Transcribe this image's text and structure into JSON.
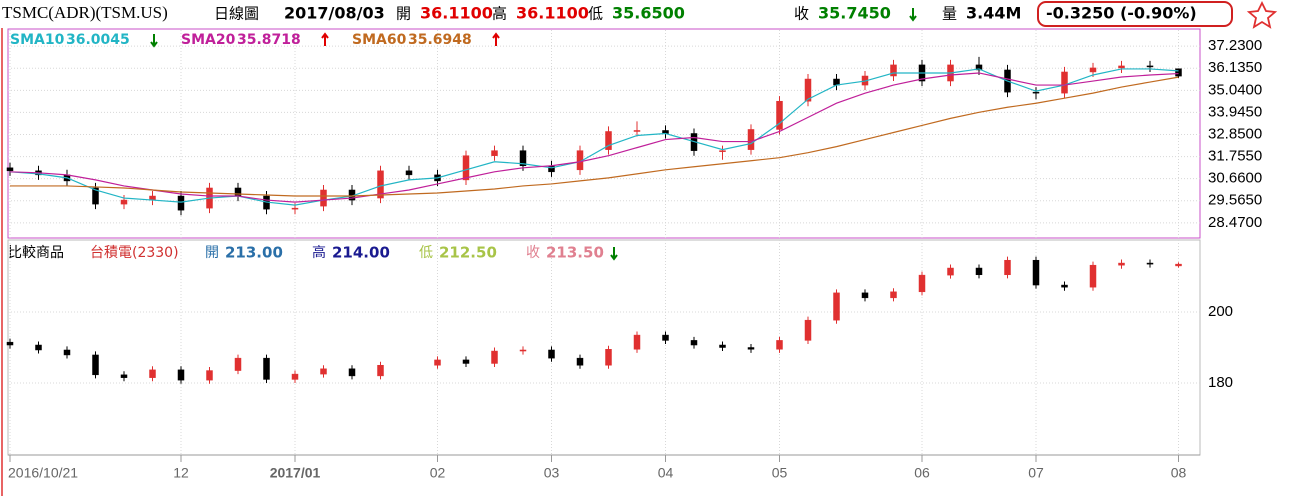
{
  "header": {
    "symbol": "TSMC(ADR)(TSM.US)",
    "period": "日線圖",
    "date": "2017/08/03",
    "quote": [
      {
        "name": "開",
        "value": 36.11,
        "label": "36.1100",
        "color": "#e00000"
      },
      {
        "name": "高",
        "value": 36.11,
        "label": "36.1100",
        "color": "#e00000"
      },
      {
        "name": "低",
        "value": 35.65,
        "label": "35.6500",
        "color": "#008000"
      },
      {
        "name": "收",
        "value": 35.745,
        "label": "35.7450",
        "color": "#008000"
      },
      {
        "name": "量",
        "value": 3440000,
        "label": "3.44M",
        "color": "#000000"
      }
    ],
    "change": "-0.3250 (-0.90%)"
  },
  "chart_data": [
    {
      "type": "candlestick",
      "up_color": "#e03030",
      "down_color": "#000000",
      "open": [
        31.2,
        31.05,
        30.85,
        30.2,
        29.4,
        29.6,
        29.8,
        29.2,
        30.2,
        29.8,
        29.15,
        29.3,
        30.1,
        29.7,
        31.05,
        30.85,
        30.6,
        31.8,
        32.05,
        31.3,
        31.1,
        32.1,
        33.0,
        33.05,
        32.9,
        32.05,
        32.1,
        33.1,
        34.5,
        35.6,
        35.3,
        35.75,
        36.3,
        35.5,
        36.3,
        36.05,
        34.95,
        34.9,
        35.95,
        36.15,
        36.25,
        36.11
      ],
      "high": [
        31.45,
        31.3,
        31.1,
        30.45,
        29.85,
        30.05,
        30.05,
        30.45,
        30.45,
        30.05,
        29.45,
        30.35,
        30.35,
        31.3,
        31.3,
        31.1,
        32.05,
        32.3,
        32.3,
        31.55,
        32.3,
        33.25,
        33.5,
        33.3,
        33.15,
        32.3,
        33.35,
        34.75,
        35.85,
        35.85,
        36.0,
        36.55,
        36.55,
        36.55,
        36.7,
        36.3,
        35.2,
        36.2,
        36.4,
        36.5,
        36.5,
        36.11
      ],
      "low": [
        30.8,
        30.6,
        30.3,
        29.15,
        29.15,
        29.35,
        28.85,
        28.95,
        29.55,
        28.9,
        28.9,
        29.05,
        29.35,
        29.45,
        30.6,
        30.3,
        30.35,
        31.55,
        31.05,
        30.75,
        30.85,
        31.85,
        32.75,
        32.65,
        31.8,
        31.6,
        31.85,
        32.85,
        34.25,
        35.05,
        35.05,
        35.5,
        35.25,
        35.25,
        35.8,
        34.7,
        34.6,
        34.65,
        35.7,
        35.9,
        35.95,
        35.65
      ],
      "close": [
        31.05,
        30.85,
        30.55,
        29.4,
        29.6,
        29.8,
        29.1,
        30.2,
        29.8,
        29.15,
        29.2,
        30.1,
        29.6,
        31.05,
        30.85,
        30.55,
        31.8,
        32.05,
        31.3,
        31.0,
        32.05,
        33.0,
        33.05,
        32.9,
        32.05,
        32.05,
        33.1,
        34.5,
        35.6,
        35.3,
        35.75,
        36.3,
        35.5,
        36.3,
        36.05,
        34.95,
        34.9,
        35.95,
        36.15,
        36.25,
        36.2,
        35.745
      ],
      "series": [
        {
          "name": "SMA10",
          "color": "#22b5c5",
          "last_label": "36.0045",
          "values": [
            31.0,
            30.9,
            30.7,
            30.1,
            29.7,
            29.6,
            29.5,
            29.7,
            29.8,
            29.5,
            29.35,
            29.6,
            29.8,
            30.3,
            30.6,
            30.7,
            31.1,
            31.5,
            31.4,
            31.2,
            31.5,
            32.3,
            32.8,
            32.9,
            32.5,
            32.1,
            32.4,
            33.4,
            34.6,
            35.3,
            35.5,
            35.9,
            35.9,
            35.9,
            36.1,
            35.5,
            35.0,
            35.3,
            35.8,
            36.1,
            36.1,
            36.0045
          ]
        },
        {
          "name": "SMA20",
          "color": "#c0209a",
          "last_label": "35.8718",
          "values": [
            31.0,
            30.95,
            30.85,
            30.6,
            30.3,
            30.1,
            29.9,
            29.8,
            29.8,
            29.6,
            29.5,
            29.6,
            29.7,
            29.9,
            30.1,
            30.4,
            30.7,
            31.0,
            31.2,
            31.3,
            31.5,
            31.8,
            32.2,
            32.6,
            32.7,
            32.5,
            32.5,
            33.0,
            33.7,
            34.4,
            34.9,
            35.3,
            35.6,
            35.8,
            35.9,
            35.6,
            35.3,
            35.3,
            35.5,
            35.7,
            35.8,
            35.8718
          ]
        },
        {
          "name": "SMA60",
          "color": "#c06a20",
          "last_label": "35.6948",
          "values": [
            30.3,
            30.3,
            30.3,
            30.25,
            30.2,
            30.1,
            30.0,
            29.95,
            29.9,
            29.85,
            29.8,
            29.8,
            29.8,
            29.85,
            29.9,
            29.95,
            30.05,
            30.15,
            30.3,
            30.4,
            30.55,
            30.7,
            30.9,
            31.1,
            31.25,
            31.4,
            31.55,
            31.7,
            31.95,
            32.25,
            32.6,
            32.95,
            33.3,
            33.65,
            33.95,
            34.2,
            34.4,
            34.65,
            34.9,
            35.2,
            35.45,
            35.6948
          ]
        }
      ],
      "ylim": [
        27.72,
        38.03
      ],
      "yticks": [
        {
          "value": 37.23,
          "label": "37.2300"
        },
        {
          "value": 36.135,
          "label": "36.1350"
        },
        {
          "value": 35.04,
          "label": "35.0400"
        },
        {
          "value": 33.945,
          "label": "33.9450"
        },
        {
          "value": 32.85,
          "label": "32.8500"
        },
        {
          "value": 31.755,
          "label": "31.7550"
        },
        {
          "value": 30.66,
          "label": "30.6600"
        },
        {
          "value": 29.565,
          "label": "29.5650"
        },
        {
          "value": 28.47,
          "label": "28.4700"
        }
      ],
      "grid": true
    },
    {
      "type": "candlestick",
      "title": "比較商品",
      "product": "台積電(2330)",
      "up_color": "#e03030",
      "down_color": "#000000",
      "quote": [
        {
          "name": "開",
          "value": 213.0,
          "label": "213.00",
          "color": "#2a6fa8"
        },
        {
          "name": "高",
          "value": 214.0,
          "label": "214.00",
          "color": "#1a1a90"
        },
        {
          "name": "低",
          "value": 212.5,
          "label": "212.50",
          "color": "#a8c448"
        },
        {
          "name": "收",
          "value": 213.5,
          "label": "213.50",
          "color": "#e08090"
        }
      ],
      "categories": [
        "2016/10/21",
        null,
        null,
        null,
        null,
        null,
        "12",
        null,
        null,
        null,
        "2017/01",
        null,
        null,
        null,
        null,
        "02",
        null,
        null,
        null,
        "03",
        null,
        null,
        null,
        "04",
        null,
        null,
        null,
        "05",
        null,
        null,
        null,
        null,
        "06",
        null,
        null,
        null,
        "07",
        null,
        null,
        null,
        null,
        "08"
      ],
      "open": [
        191.5,
        190.7,
        189.3,
        187.9,
        182.3,
        181.5,
        183.7,
        180.8,
        183.5,
        187,
        181,
        182.5,
        184,
        182,
        null,
        185,
        186.5,
        185.5,
        189,
        189.3,
        187,
        185,
        189.5,
        193.5,
        192,
        190.7,
        190,
        189.5,
        192,
        197.7,
        205.4,
        204,
        205.7,
        210.4,
        212.4,
        210.5,
        214.6,
        207.6,
        207,
        213.2,
        213.8,
        213.0
      ],
      "high": [
        192.5,
        191.7,
        190.3,
        188.9,
        183.3,
        184.7,
        184.7,
        184.5,
        188.0,
        188,
        183.5,
        185,
        185,
        186,
        null,
        187.5,
        187.5,
        190,
        190.3,
        190.3,
        188,
        190.5,
        194.5,
        194.5,
        193,
        191.7,
        191,
        193,
        198.7,
        206.4,
        206.4,
        206.7,
        211.4,
        213.4,
        213.4,
        215.6,
        215.6,
        208.6,
        214.2,
        214.8,
        214.8,
        214.0
      ],
      "low": [
        189.7,
        188.3,
        186.9,
        181.3,
        180.5,
        180.5,
        179.8,
        179.8,
        182.5,
        180,
        180,
        181.5,
        181,
        181,
        null,
        184,
        184.5,
        184.5,
        188,
        186,
        184,
        184,
        188.5,
        191,
        189.7,
        189,
        188.5,
        188.5,
        191,
        196.7,
        203,
        203,
        204.7,
        209.4,
        209.5,
        209.5,
        206.6,
        206,
        206,
        212.2,
        212.5,
        212.5
      ],
      "close": [
        190.7,
        189.3,
        187.9,
        182.3,
        181.5,
        183.7,
        180.8,
        183.5,
        187.0,
        181,
        182.5,
        184,
        182,
        185,
        null,
        186.5,
        185.5,
        189,
        189.3,
        187,
        185,
        189.5,
        193.5,
        192,
        190.7,
        190,
        189.5,
        192,
        197.7,
        205.4,
        204,
        205.7,
        210.4,
        212.4,
        210.5,
        214.6,
        207.6,
        207.0,
        213.2,
        213.8,
        213.5,
        213.5
      ],
      "ylim": [
        159.7,
        220.3
      ],
      "yticks": [
        200,
        180
      ],
      "grid": true
    }
  ]
}
